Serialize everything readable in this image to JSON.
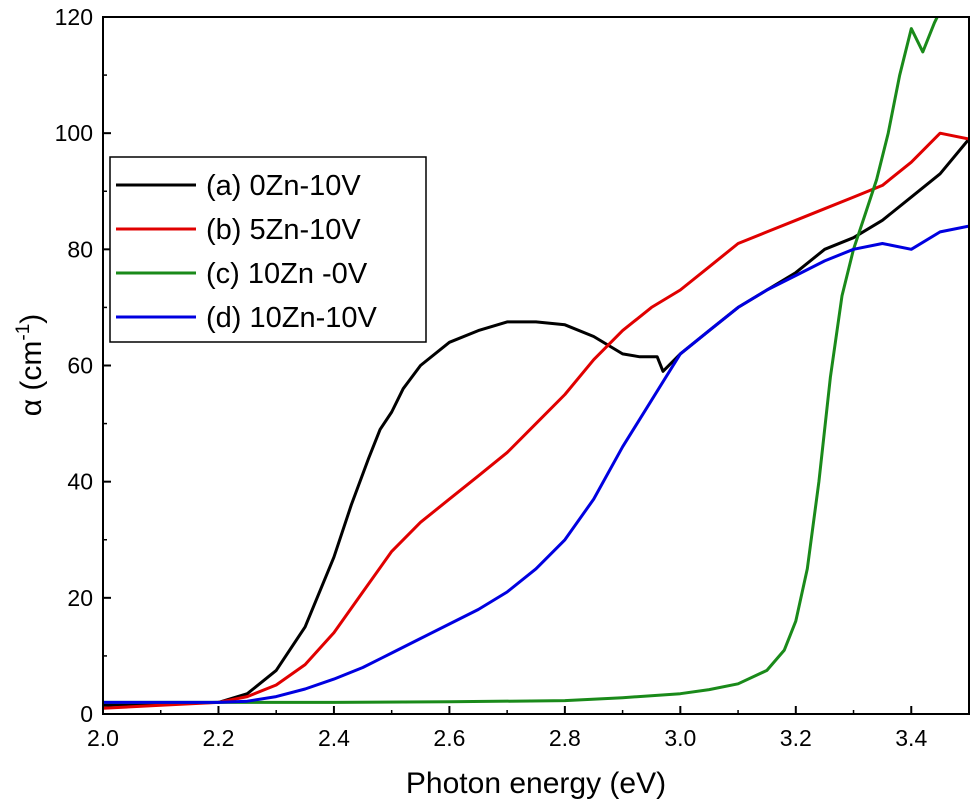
{
  "chart_data": {
    "type": "line",
    "xlabel": "Photon energy (eV)",
    "ylabel": "α (cm-1)",
    "ylabel_parts": {
      "base": "α (cm",
      "sup": "-1",
      "close": ")"
    },
    "xlim": [
      2.0,
      3.5
    ],
    "ylim": [
      0,
      120
    ],
    "xticks": [
      2.0,
      2.2,
      2.4,
      2.6,
      2.8,
      3.0,
      3.2,
      3.4
    ],
    "xtick_labels": [
      "2.0",
      "2.2",
      "2.4",
      "2.6",
      "2.8",
      "3.0",
      "3.2",
      "3.4"
    ],
    "yticks": [
      0,
      20,
      40,
      60,
      80,
      100,
      120
    ],
    "ytick_labels": [
      "0",
      "20",
      "40",
      "60",
      "80",
      "100",
      "120"
    ],
    "legend_position": "upper-left",
    "series": [
      {
        "name": "(a) 0Zn-10V",
        "color": "#000000",
        "x": [
          2.0,
          2.1,
          2.2,
          2.25,
          2.3,
          2.35,
          2.4,
          2.43,
          2.46,
          2.48,
          2.5,
          2.52,
          2.55,
          2.6,
          2.65,
          2.7,
          2.75,
          2.8,
          2.85,
          2.9,
          2.93,
          2.96,
          2.97,
          3.0,
          3.05,
          3.1,
          3.15,
          3.2,
          3.25,
          3.3,
          3.35,
          3.4,
          3.45,
          3.5
        ],
        "y": [
          1.5,
          1.8,
          2.0,
          3.5,
          7.5,
          15,
          27,
          36,
          44,
          49,
          52,
          56,
          60,
          64,
          66,
          67.5,
          67.5,
          67,
          65,
          62,
          61.5,
          61.5,
          59,
          62,
          66,
          70,
          73,
          76,
          80,
          82,
          85,
          89,
          93,
          99
        ]
      },
      {
        "name": "(b) 5Zn-10V",
        "color": "#e00000",
        "x": [
          2.0,
          2.1,
          2.2,
          2.25,
          2.3,
          2.35,
          2.4,
          2.45,
          2.5,
          2.55,
          2.6,
          2.65,
          2.7,
          2.75,
          2.8,
          2.85,
          2.9,
          2.95,
          3.0,
          3.05,
          3.1,
          3.15,
          3.2,
          3.25,
          3.3,
          3.35,
          3.4,
          3.45,
          3.5
        ],
        "y": [
          1.0,
          1.5,
          2.0,
          3.0,
          5.0,
          8.5,
          14,
          21,
          28,
          33,
          37,
          41,
          45,
          50,
          55,
          61,
          66,
          70,
          73,
          77,
          81,
          83,
          85,
          87,
          89,
          91,
          95,
          100,
          99
        ]
      },
      {
        "name": "(c) 10Zn -0V",
        "color": "#1a8a1a",
        "x": [
          2.0,
          2.2,
          2.4,
          2.6,
          2.8,
          2.9,
          3.0,
          3.05,
          3.1,
          3.15,
          3.18,
          3.2,
          3.22,
          3.24,
          3.26,
          3.28,
          3.3,
          3.32,
          3.34,
          3.36,
          3.38,
          3.4,
          3.42,
          3.44,
          3.45
        ],
        "y": [
          2.0,
          2.0,
          2.0,
          2.1,
          2.3,
          2.8,
          3.5,
          4.2,
          5.2,
          7.5,
          11,
          16,
          25,
          40,
          58,
          72,
          80,
          86,
          92,
          100,
          110,
          118,
          114,
          119,
          121
        ]
      },
      {
        "name": "(d) 10Zn-10V",
        "color": "#0000e0",
        "x": [
          2.0,
          2.1,
          2.2,
          2.25,
          2.3,
          2.35,
          2.4,
          2.45,
          2.5,
          2.55,
          2.6,
          2.65,
          2.7,
          2.75,
          2.8,
          2.85,
          2.9,
          2.95,
          3.0,
          3.05,
          3.1,
          3.15,
          3.2,
          3.25,
          3.3,
          3.35,
          3.4,
          3.45,
          3.5
        ],
        "y": [
          2.0,
          2.0,
          2.0,
          2.2,
          3.0,
          4.3,
          6.0,
          8.0,
          10.5,
          13,
          15.5,
          18,
          21,
          25,
          30,
          37,
          46,
          54,
          62,
          66,
          70,
          73,
          75.5,
          78,
          80,
          81,
          80,
          83,
          84
        ]
      }
    ]
  }
}
